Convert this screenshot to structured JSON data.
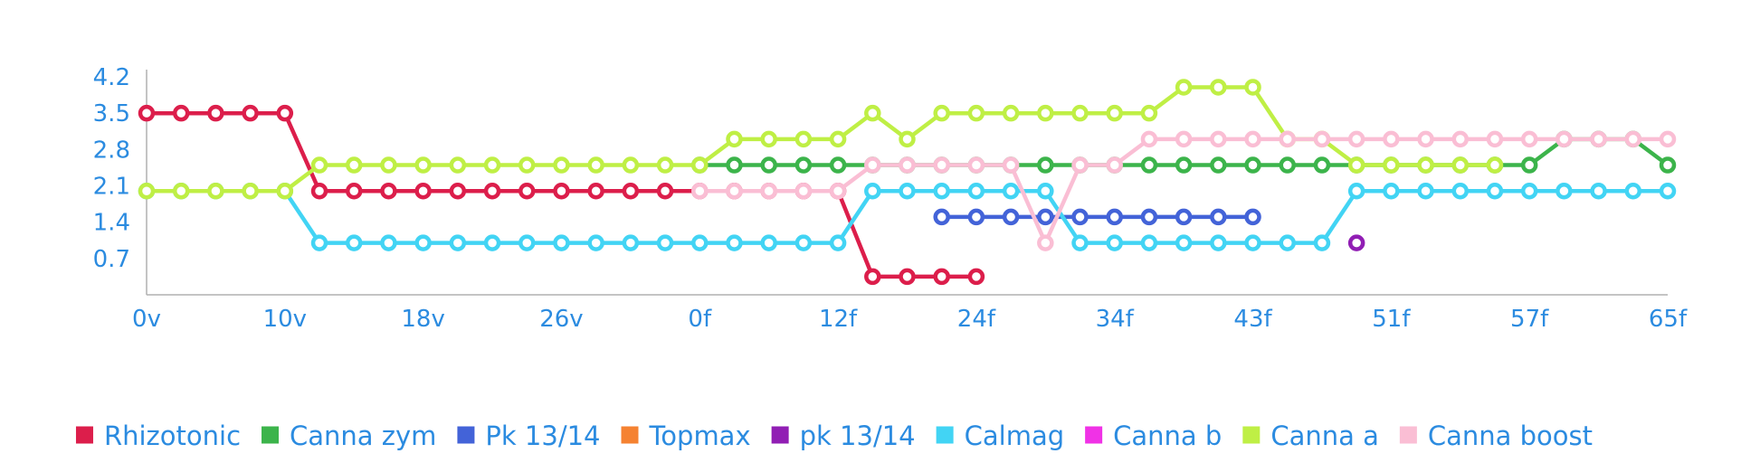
{
  "chart_data": {
    "type": "line",
    "title": "",
    "xlabel": "",
    "ylabel": "",
    "x_tick_labels": [
      "0v",
      "10v",
      "18v",
      "26v",
      "0f",
      "12f",
      "24f",
      "34f",
      "43f",
      "51f",
      "57f",
      "65f"
    ],
    "y_ticks": [
      0.7,
      1.4,
      2.1,
      2.8,
      3.5,
      4.2
    ],
    "ylim": [
      0,
      4.2
    ],
    "grid": false,
    "legend_position": "bottom",
    "legend": [
      "Rhizotonic",
      "Canna zym",
      "Pk 13/14",
      "Topmax",
      "pk 13/14",
      "Calmag",
      "Canna b",
      "Canna a",
      "Canna boost"
    ],
    "series": [
      {
        "name": "Rhizotonic",
        "color": "#dc1e4b",
        "x": [
          0,
          1,
          2,
          3,
          4,
          5,
          6,
          7,
          8,
          9,
          10,
          11,
          12,
          13,
          14,
          15,
          16,
          17,
          18,
          19,
          20,
          21,
          22,
          23,
          24
        ],
        "y": [
          3.5,
          3.5,
          3.5,
          3.5,
          3.5,
          2.0,
          2.0,
          2.0,
          2.0,
          2.0,
          2.0,
          2.0,
          2.0,
          2.0,
          2.0,
          2.0,
          2.0,
          2.0,
          2.0,
          2.0,
          2.0,
          0.35,
          0.35,
          0.35,
          0.35
        ]
      },
      {
        "name": "Canna zym",
        "color": "#3cb44b",
        "x": [
          16,
          17,
          18,
          19,
          20,
          21,
          22,
          23,
          24,
          25,
          26,
          27,
          28,
          29,
          30,
          31,
          32,
          33,
          34,
          35,
          36,
          37,
          38,
          39,
          40,
          41,
          42,
          43,
          44
        ],
        "y": [
          2.5,
          2.5,
          2.5,
          2.5,
          2.5,
          2.5,
          2.5,
          2.5,
          2.5,
          2.5,
          2.5,
          2.5,
          2.5,
          2.5,
          2.5,
          2.5,
          2.5,
          2.5,
          2.5,
          2.5,
          2.5,
          2.5,
          2.5,
          2.5,
          2.5,
          3.0,
          3.0,
          3.0,
          2.5
        ]
      },
      {
        "name": "Pk 13/14",
        "color": "#4363d8",
        "x": [
          23,
          24,
          25,
          26,
          27,
          28,
          29,
          30,
          31,
          32
        ],
        "y": [
          1.5,
          1.5,
          1.5,
          1.5,
          1.5,
          1.5,
          1.5,
          1.5,
          1.5,
          1.5
        ]
      },
      {
        "name": "Topmax",
        "color": "#f58231",
        "x": [],
        "y": []
      },
      {
        "name": "pk 13/14",
        "color": "#911eb4",
        "x": [
          35
        ],
        "y": [
          1.0
        ]
      },
      {
        "name": "Calmag",
        "color": "#42d4f4",
        "x": [
          0,
          1,
          2,
          3,
          4,
          5,
          6,
          7,
          8,
          9,
          10,
          11,
          12,
          13,
          14,
          15,
          16,
          17,
          18,
          19,
          20,
          21,
          22,
          23,
          24,
          25,
          26,
          27,
          28,
          29,
          30,
          31,
          32,
          33,
          34,
          35,
          36,
          37,
          38,
          39,
          40,
          41,
          42,
          43,
          44
        ],
        "y": [
          2.0,
          2.0,
          2.0,
          2.0,
          2.0,
          1.0,
          1.0,
          1.0,
          1.0,
          1.0,
          1.0,
          1.0,
          1.0,
          1.0,
          1.0,
          1.0,
          1.0,
          1.0,
          1.0,
          1.0,
          1.0,
          2.0,
          2.0,
          2.0,
          2.0,
          2.0,
          2.0,
          1.0,
          1.0,
          1.0,
          1.0,
          1.0,
          1.0,
          1.0,
          1.0,
          2.0,
          2.0,
          2.0,
          2.0,
          2.0,
          2.0,
          2.0,
          2.0,
          2.0,
          2.0
        ]
      },
      {
        "name": "Canna b",
        "color": "#f032e6",
        "x": [],
        "y": []
      },
      {
        "name": "Canna a",
        "color": "#bfef45",
        "x": [
          0,
          1,
          2,
          3,
          4,
          5,
          6,
          7,
          8,
          9,
          10,
          11,
          12,
          13,
          14,
          15,
          16,
          17,
          18,
          19,
          20,
          21,
          22,
          23,
          24,
          25,
          26,
          27,
          28,
          29,
          30,
          31,
          32,
          33,
          34,
          35,
          36,
          37,
          38,
          39
        ],
        "y": [
          2.0,
          2.0,
          2.0,
          2.0,
          2.0,
          2.5,
          2.5,
          2.5,
          2.5,
          2.5,
          2.5,
          2.5,
          2.5,
          2.5,
          2.5,
          2.5,
          2.5,
          3.0,
          3.0,
          3.0,
          3.0,
          3.5,
          3.0,
          3.5,
          3.5,
          3.5,
          3.5,
          3.5,
          3.5,
          3.5,
          4.0,
          4.0,
          4.0,
          3.0,
          3.0,
          2.5,
          2.5,
          2.5,
          2.5,
          2.5
        ]
      },
      {
        "name": "Canna boost",
        "color": "#fabed4",
        "x": [
          16,
          17,
          18,
          19,
          20,
          21,
          22,
          23,
          24,
          25,
          26,
          27,
          28,
          29,
          30,
          31,
          32,
          33,
          34,
          35,
          36,
          37,
          38,
          39,
          40,
          41,
          42,
          43,
          44
        ],
        "y": [
          2.0,
          2.0,
          2.0,
          2.0,
          2.0,
          2.5,
          2.5,
          2.5,
          2.5,
          2.5,
          1.0,
          2.5,
          2.5,
          3.0,
          3.0,
          3.0,
          3.0,
          3.0,
          3.0,
          3.0,
          3.0,
          3.0,
          3.0,
          3.0,
          3.0,
          3.0,
          3.0,
          3.0,
          3.0
        ]
      }
    ]
  }
}
